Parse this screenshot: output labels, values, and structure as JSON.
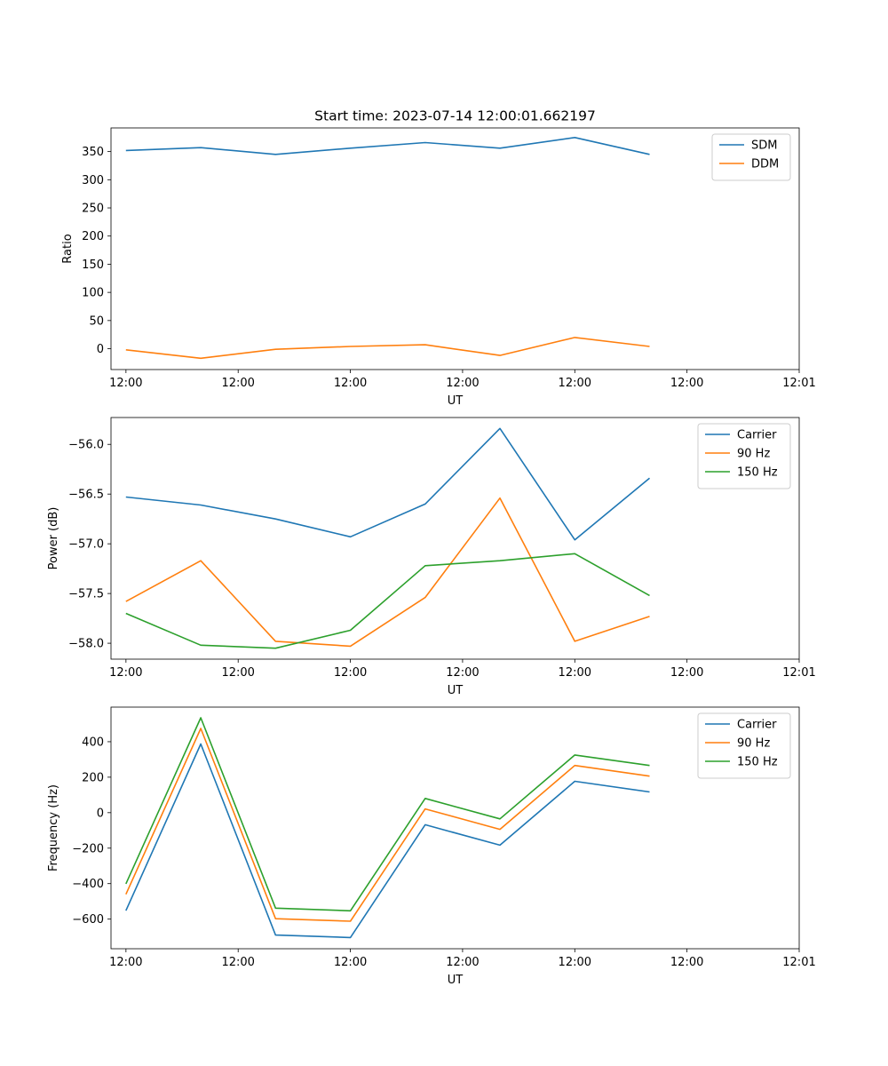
{
  "figure_title": "Start time: 2023-07-14 12:00:01.662197",
  "chart_data": [
    {
      "type": "line",
      "xlabel": "UT",
      "ylabel": "Ratio",
      "x": [
        1,
        2,
        3,
        4,
        5,
        6,
        7,
        8
      ],
      "xlim": [
        0.8,
        10
      ],
      "x_ticks": [
        1,
        2.5,
        4,
        5.5,
        7,
        8.5,
        10
      ],
      "x_tick_labels": [
        "12:00",
        "12:00",
        "12:00",
        "12:00",
        "12:00",
        "12:00",
        "12:01"
      ],
      "ylim": [
        -37,
        392
      ],
      "y_ticks": [
        0,
        50,
        100,
        150,
        200,
        250,
        300,
        350
      ],
      "y_tick_labels": [
        "0",
        "50",
        "100",
        "150",
        "200",
        "250",
        "300",
        "350"
      ],
      "legend": "top-right",
      "series": [
        {
          "name": "SDM",
          "color": "#1f77b4",
          "values": [
            352,
            357,
            345,
            356,
            366,
            356,
            375,
            345
          ]
        },
        {
          "name": "DDM",
          "color": "#ff7f0e",
          "values": [
            -2,
            -17,
            -1,
            4,
            7,
            -12,
            20,
            4
          ]
        }
      ]
    },
    {
      "type": "line",
      "xlabel": "UT",
      "ylabel": "Power (dB)",
      "x": [
        1,
        2,
        3,
        4,
        5,
        6,
        7,
        8
      ],
      "xlim": [
        0.8,
        10
      ],
      "x_ticks": [
        1,
        2.5,
        4,
        5.5,
        7,
        8.5,
        10
      ],
      "x_tick_labels": [
        "12:00",
        "12:00",
        "12:00",
        "12:00",
        "12:00",
        "12:00",
        "12:01"
      ],
      "ylim": [
        -58.16,
        -55.73
      ],
      "y_ticks": [
        -56.0,
        -56.5,
        -57.0,
        -57.5,
        -58.0
      ],
      "y_tick_labels": [
        "−56.0",
        "−56.5",
        "−57.0",
        "−57.5",
        "−58.0"
      ],
      "legend": "top-right",
      "series": [
        {
          "name": "Carrier",
          "color": "#1f77b4",
          "values": [
            -56.53,
            -56.61,
            -56.75,
            -56.93,
            -56.6,
            -55.84,
            -56.96,
            -56.34
          ]
        },
        {
          "name": "90 Hz",
          "color": "#ff7f0e",
          "values": [
            -57.58,
            -57.17,
            -57.98,
            -58.03,
            -57.54,
            -56.54,
            -57.98,
            -57.73
          ]
        },
        {
          "name": "150 Hz",
          "color": "#2ca02c",
          "values": [
            -57.7,
            -58.02,
            -58.05,
            -57.87,
            -57.22,
            -57.17,
            -57.1,
            -57.52
          ]
        }
      ]
    },
    {
      "type": "line",
      "xlabel": "UT",
      "ylabel": "Frequency (Hz)",
      "x": [
        1,
        2,
        3,
        4,
        5,
        6,
        7,
        8
      ],
      "xlim": [
        0.8,
        10
      ],
      "x_ticks": [
        1,
        2.5,
        4,
        5.5,
        7,
        8.5,
        10
      ],
      "x_tick_labels": [
        "12:00",
        "12:00",
        "12:00",
        "12:00",
        "12:00",
        "12:00",
        "12:01"
      ],
      "ylim": [
        -767,
        595
      ],
      "y_ticks": [
        400,
        200,
        0,
        -200,
        -400,
        -600
      ],
      "y_tick_labels": [
        "400",
        "200",
        "0",
        "−200",
        "−400",
        "−600"
      ],
      "legend": "top-right",
      "series": [
        {
          "name": "Carrier",
          "color": "#1f77b4",
          "values": [
            -552,
            387,
            -690,
            -704,
            -68,
            -183,
            177,
            117
          ]
        },
        {
          "name": "90 Hz",
          "color": "#ff7f0e",
          "values": [
            -460,
            475,
            -598,
            -612,
            21,
            -94,
            266,
            206
          ]
        },
        {
          "name": "150 Hz",
          "color": "#2ca02c",
          "values": [
            -401,
            535,
            -538,
            -553,
            80,
            -35,
            325,
            266
          ]
        }
      ]
    }
  ]
}
